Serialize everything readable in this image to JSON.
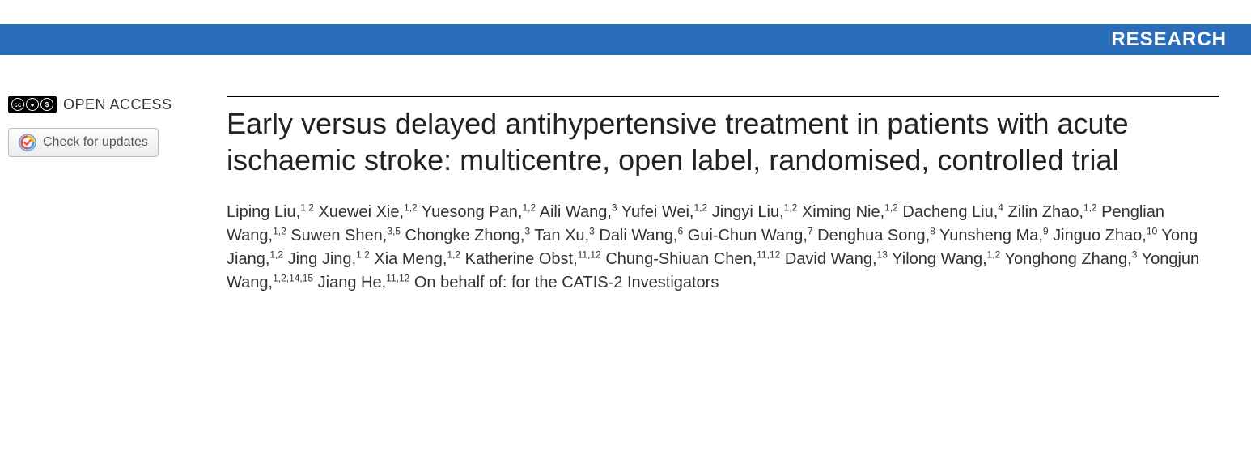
{
  "banner": {
    "label": "RESEARCH",
    "background_color": "#2a6ebb",
    "text_color": "#ffffff"
  },
  "sidebar": {
    "open_access_label": "OPEN ACCESS",
    "cc_symbols": [
      "cc",
      "by",
      "nc"
    ],
    "check_updates_label": "Check for updates"
  },
  "article": {
    "title": "Early versus delayed antihypertensive treatment in patients with acute ischaemic stroke: multicentre, open label, randomised, controlled trial",
    "title_fontsize": 36,
    "authors": [
      {
        "name": "Liping Liu",
        "affil": "1,2"
      },
      {
        "name": "Xuewei Xie",
        "affil": "1,2"
      },
      {
        "name": "Yuesong Pan",
        "affil": "1,2"
      },
      {
        "name": "Aili Wang",
        "affil": "3"
      },
      {
        "name": "Yufei Wei",
        "affil": "1,2"
      },
      {
        "name": "Jingyi Liu",
        "affil": "1,2"
      },
      {
        "name": "Ximing Nie",
        "affil": "1,2"
      },
      {
        "name": "Dacheng Liu",
        "affil": "4"
      },
      {
        "name": "Zilin Zhao",
        "affil": "1,2"
      },
      {
        "name": "Penglian Wang",
        "affil": "1,2"
      },
      {
        "name": "Suwen Shen",
        "affil": "3,5"
      },
      {
        "name": "Chongke Zhong",
        "affil": "3"
      },
      {
        "name": "Tan Xu",
        "affil": "3"
      },
      {
        "name": "Dali Wang",
        "affil": "6"
      },
      {
        "name": "Gui-Chun Wang",
        "affil": "7"
      },
      {
        "name": "Denghua Song",
        "affil": "8"
      },
      {
        "name": "Yunsheng Ma",
        "affil": "9"
      },
      {
        "name": "Jinguo Zhao",
        "affil": "10"
      },
      {
        "name": "Yong Jiang",
        "affil": "1,2"
      },
      {
        "name": "Jing Jing",
        "affil": "1,2"
      },
      {
        "name": "Xia Meng",
        "affil": "1,2"
      },
      {
        "name": "Katherine Obst",
        "affil": "11,12"
      },
      {
        "name": "Chung-Shiuan Chen",
        "affil": "11,12"
      },
      {
        "name": "David Wang",
        "affil": "13"
      },
      {
        "name": "Yilong Wang",
        "affil": "1,2"
      },
      {
        "name": "Yonghong Zhang",
        "affil": "3"
      },
      {
        "name": "Yongjun Wang",
        "affil": "1,2,14,15"
      },
      {
        "name": "Jiang He",
        "affil": "11,12"
      }
    ],
    "author_suffix": "On behalf of: for the CATIS-2 Investigators",
    "author_fontsize": 20,
    "rule_color": "#000000"
  },
  "colors": {
    "body_bg": "#ffffff",
    "title_color": "#222222",
    "author_color": "#333333"
  }
}
